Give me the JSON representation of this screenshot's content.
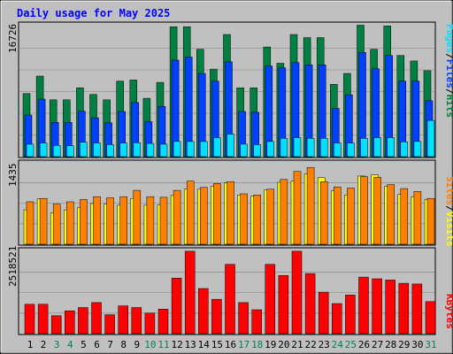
{
  "chart_data": [
    {
      "type": "bar",
      "title": "Daily usage for May 2025",
      "ymax_label": "16726",
      "ylim": [
        0,
        16726
      ],
      "categories": [
        "1",
        "2",
        "3",
        "4",
        "5",
        "6",
        "7",
        "8",
        "9",
        "10",
        "11",
        "12",
        "13",
        "14",
        "15",
        "16",
        "17",
        "18",
        "19",
        "20",
        "21",
        "22",
        "23",
        "24",
        "25",
        "26",
        "27",
        "28",
        "29",
        "30",
        "31"
      ],
      "series": [
        {
          "name": "Hits",
          "color": "#008040",
          "values": [
            8100,
            10350,
            7300,
            7300,
            8850,
            8000,
            7300,
            9700,
            9850,
            7500,
            9550,
            16700,
            16700,
            13800,
            11250,
            15700,
            8850,
            8850,
            14100,
            12000,
            15700,
            15300,
            15300,
            9300,
            10700,
            16900,
            13800,
            16800,
            13000,
            12300,
            11050
          ]
        },
        {
          "name": "Files",
          "color": "#0040ff",
          "values": [
            5350,
            7400,
            4400,
            4400,
            5850,
            5000,
            4350,
            5800,
            6950,
            4500,
            6450,
            12400,
            12800,
            10700,
            9700,
            12200,
            5800,
            5700,
            11650,
            11400,
            12100,
            11800,
            11800,
            6200,
            7950,
            13400,
            11300,
            13000,
            9700,
            9700,
            7200
          ]
        },
        {
          "name": "Pages",
          "color": "#00e0ff",
          "values": [
            1600,
            1750,
            1450,
            1400,
            1850,
            1750,
            1550,
            1750,
            1800,
            1700,
            1600,
            1950,
            1950,
            1950,
            2450,
            2900,
            1600,
            1550,
            1950,
            2350,
            2450,
            2350,
            2350,
            1750,
            1750,
            2350,
            2450,
            2450,
            1900,
            1950,
            4650
          ]
        }
      ]
    },
    {
      "type": "bar",
      "ymax_label": "1435",
      "ylim": [
        0,
        1435
      ],
      "categories": [
        "1",
        "2",
        "3",
        "4",
        "5",
        "6",
        "7",
        "8",
        "9",
        "10",
        "11",
        "12",
        "13",
        "14",
        "15",
        "16",
        "17",
        "18",
        "19",
        "20",
        "21",
        "22",
        "23",
        "24",
        "25",
        "26",
        "27",
        "28",
        "29",
        "30",
        "31"
      ],
      "series": [
        {
          "name": "Visits",
          "color": "#ffff00",
          "values": [
            600,
            790,
            550,
            600,
            640,
            710,
            700,
            680,
            800,
            680,
            690,
            850,
            960,
            960,
            1010,
            1070,
            860,
            840,
            950,
            1080,
            1100,
            1230,
            1160,
            930,
            860,
            1190,
            1210,
            1010,
            870,
            830,
            780
          ]
        },
        {
          "name": "Sites",
          "color": "#ff8000",
          "values": [
            740,
            800,
            700,
            740,
            780,
            830,
            810,
            830,
            940,
            830,
            820,
            940,
            1100,
            990,
            1060,
            1090,
            880,
            860,
            960,
            1130,
            1270,
            1340,
            1090,
            1000,
            980,
            1180,
            1170,
            1040,
            970,
            920,
            800
          ]
        }
      ]
    },
    {
      "type": "bar",
      "ymax_label": "2518521",
      "ylim": [
        0,
        2518521
      ],
      "categories": [
        "1",
        "2",
        "3",
        "4",
        "5",
        "6",
        "7",
        "8",
        "9",
        "10",
        "11",
        "12",
        "13",
        "14",
        "15",
        "16",
        "17",
        "18",
        "19",
        "20",
        "21",
        "22",
        "23",
        "24",
        "25",
        "26",
        "27",
        "28",
        "29",
        "30",
        "31"
      ],
      "series": [
        {
          "name": "KBytes",
          "color": "#ff0000",
          "values": [
            900000,
            900000,
            550000,
            700000,
            800000,
            950000,
            580000,
            850000,
            800000,
            630000,
            750000,
            1700000,
            2520000,
            1380000,
            1050000,
            2120000,
            950000,
            730000,
            2120000,
            1780000,
            2520000,
            1840000,
            1270000,
            920000,
            1180000,
            1730000,
            1680000,
            1640000,
            1540000,
            1520000,
            980000
          ]
        }
      ]
    }
  ],
  "vertical_labels": {
    "top": [
      {
        "text": "Pages",
        "color": "#00e0ff"
      },
      {
        "text": "/",
        "color": "#000000"
      },
      {
        "text": "Files",
        "color": "#0040ff"
      },
      {
        "text": "/",
        "color": "#000000"
      },
      {
        "text": "Hits",
        "color": "#008040"
      }
    ],
    "middle": [
      {
        "text": "Sites",
        "color": "#ff8000"
      },
      {
        "text": "/",
        "color": "#000000"
      },
      {
        "text": "Visits",
        "color": "#ffff00"
      }
    ],
    "bottom": [
      {
        "text": "KBytes",
        "color": "#ff0000"
      }
    ]
  },
  "weekend_days": [
    "3",
    "4",
    "10",
    "11",
    "17",
    "18",
    "24",
    "25",
    "31"
  ],
  "colors": {
    "title": "#0000ff",
    "weekday_label": "#000000",
    "weekend_label": "#00805c",
    "panel": "#c0c0c0",
    "gridline": "#808080"
  }
}
